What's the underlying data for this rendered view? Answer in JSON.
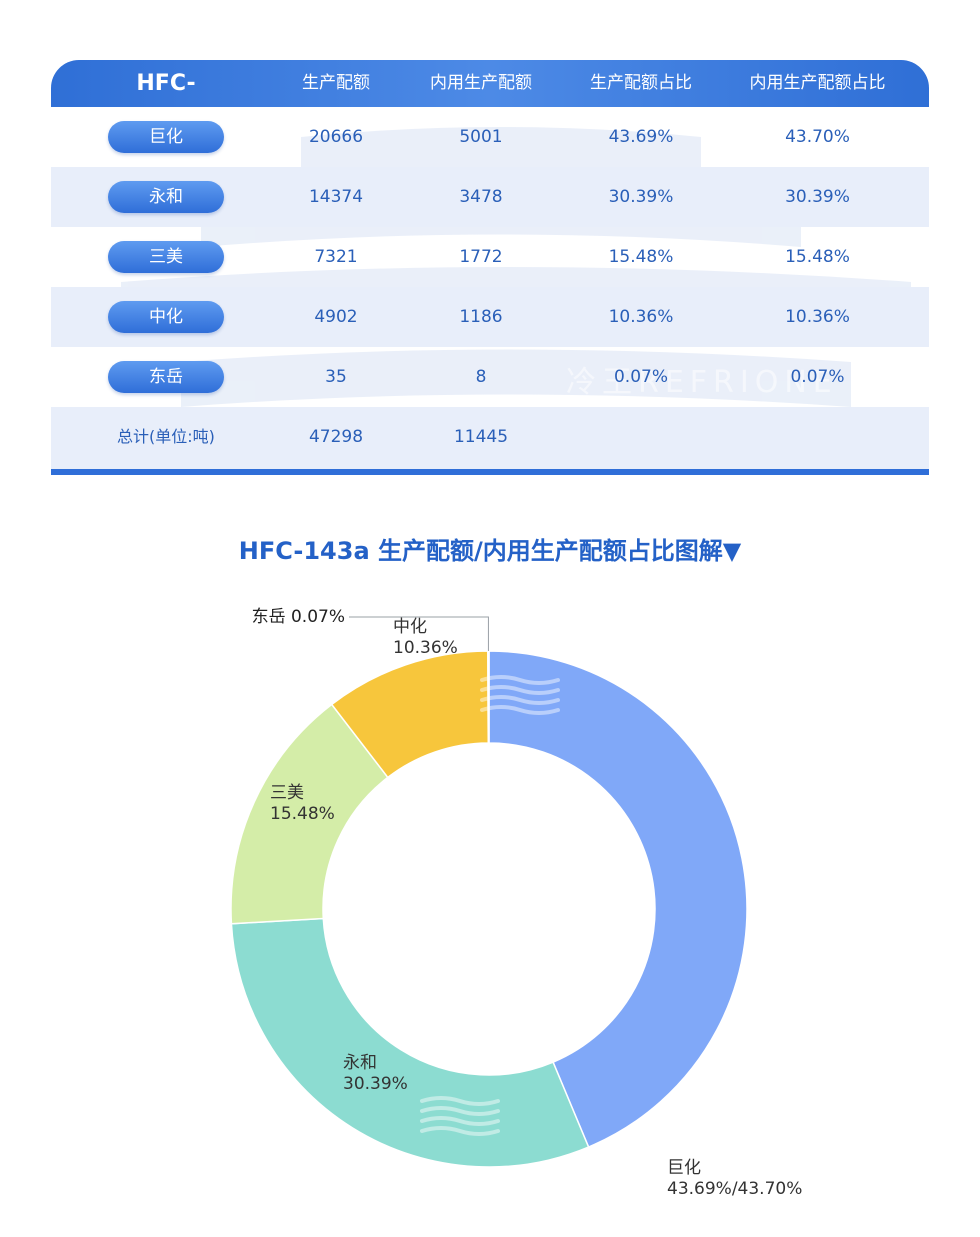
{
  "table": {
    "header": {
      "product": "HFC-143a",
      "col_production": "生产配额",
      "col_domestic": "内用生产配额",
      "col_production_share": "生产配额占比",
      "col_domestic_share": "内用生产配额占比"
    },
    "rows": [
      {
        "company": "巨化",
        "production": "20666",
        "domestic": "5001",
        "production_share": "43.69%",
        "domestic_share": "43.70%"
      },
      {
        "company": "永和",
        "production": "14374",
        "domestic": "3478",
        "production_share": "30.39%",
        "domestic_share": "30.39%"
      },
      {
        "company": "三美",
        "production": "7321",
        "domestic": "1772",
        "production_share": "15.48%",
        "domestic_share": "15.48%"
      },
      {
        "company": "中化",
        "production": "4902",
        "domestic": "1186",
        "production_share": "10.36%",
        "domestic_share": "10.36%"
      },
      {
        "company": "东岳",
        "production": "35",
        "domestic": "8",
        "production_share": "0.07%",
        "domestic_share": "0.07%"
      }
    ],
    "total": {
      "label": "总计(单位:吨)",
      "production": "47298",
      "domestic": "11445"
    }
  },
  "watermark": {
    "text": "冷王REFRIONE"
  },
  "chart_data": {
    "type": "pie",
    "title": "HFC-143a 生产配额/内用生产配额占比图解▼",
    "series": [
      {
        "name": "巨化",
        "value": 43.69,
        "label": "43.69%/43.70%",
        "color": "#80a8f8"
      },
      {
        "name": "永和",
        "value": 30.39,
        "label": "30.39%",
        "color": "#8cdcd1"
      },
      {
        "name": "三美",
        "value": 15.48,
        "label": "15.48%",
        "color": "#d4eda8"
      },
      {
        "name": "中化",
        "value": 10.36,
        "label": "10.36%",
        "color": "#f7c63c"
      },
      {
        "name": "东岳",
        "value": 0.07,
        "label": "0.07%",
        "color": "#9aa0a6"
      }
    ]
  }
}
